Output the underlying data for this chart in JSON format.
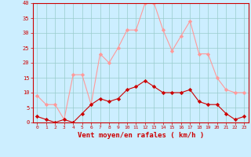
{
  "hours": [
    0,
    1,
    2,
    3,
    4,
    5,
    6,
    7,
    8,
    9,
    10,
    11,
    12,
    13,
    14,
    15,
    16,
    17,
    18,
    19,
    20,
    21,
    22,
    23
  ],
  "vent_moyen": [
    2,
    1,
    0,
    1,
    0,
    3,
    6,
    8,
    7,
    8,
    11,
    12,
    14,
    12,
    10,
    10,
    10,
    11,
    7,
    6,
    6,
    3,
    1,
    2
  ],
  "rafales": [
    9,
    6,
    6,
    1,
    16,
    16,
    6,
    23,
    20,
    25,
    31,
    31,
    40,
    40,
    31,
    24,
    29,
    34,
    23,
    23,
    15,
    11,
    10,
    10
  ],
  "color_moyen": "#cc0000",
  "color_rafales": "#ff9999",
  "bg_color": "#cceeff",
  "grid_color": "#99cccc",
  "xlabel": "Vent moyen/en rafales ( km/h )",
  "xlabel_color": "#cc0000",
  "tick_color": "#cc0000",
  "ylim": [
    0,
    40
  ],
  "xlim": [
    -0.5,
    23.5
  ],
  "yticks": [
    0,
    5,
    10,
    15,
    20,
    25,
    30,
    35,
    40
  ]
}
